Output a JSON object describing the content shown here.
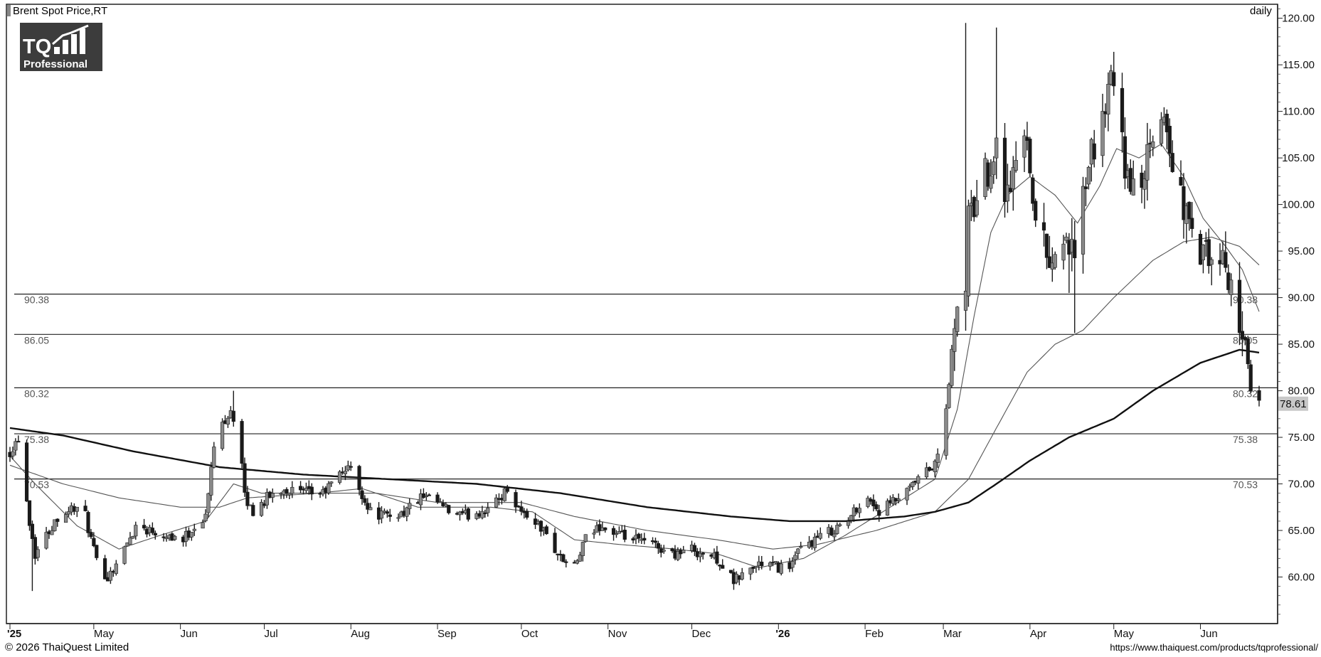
{
  "header": {
    "title": "Brent Spot Price,RT",
    "timeframe": "daily"
  },
  "logo": {
    "line1": "TQ",
    "line2": "Professional"
  },
  "footer": {
    "copyright": "© 2026 ThaiQuest Limited",
    "url": "https://www.thaiquest.com/products/tqprofessional/"
  },
  "chart_data": {
    "type": "candlestick",
    "title": "Brent Spot Price,RT",
    "interval": "daily",
    "y_range": [
      55,
      121.5
    ],
    "y_ticks": [
      60,
      65,
      70,
      75,
      80,
      85,
      90,
      95,
      100,
      105,
      110,
      115,
      120
    ],
    "y_tick_labels": [
      "60.00",
      "65.00",
      "70.00",
      "75.00",
      "80.00",
      "85.00",
      "90.00",
      "95.00",
      "100.00",
      "105.00",
      "110.00",
      "115.00",
      "120.00"
    ],
    "x_range": [
      "2025-04-01",
      "2026-06-22"
    ],
    "x_ticks": [
      {
        "date": "2025-04-01",
        "label": "'25"
      },
      {
        "date": "2025-05-01",
        "label": "May"
      },
      {
        "date": "2025-06-01",
        "label": "Jun"
      },
      {
        "date": "2025-07-01",
        "label": "Jul"
      },
      {
        "date": "2025-08-01",
        "label": "Aug"
      },
      {
        "date": "2025-09-01",
        "label": "Sep"
      },
      {
        "date": "2025-10-01",
        "label": "Oct"
      },
      {
        "date": "2025-11-01",
        "label": "Nov"
      },
      {
        "date": "2025-12-01",
        "label": "Dec"
      },
      {
        "date": "2026-01-01",
        "label": "'26"
      },
      {
        "date": "2026-02-01",
        "label": "Feb"
      },
      {
        "date": "2026-03-01",
        "label": "Mar"
      },
      {
        "date": "2026-04-01",
        "label": "Apr"
      },
      {
        "date": "2026-05-01",
        "label": "May"
      },
      {
        "date": "2026-06-01",
        "label": "Jun"
      }
    ],
    "horizontal_levels": [
      {
        "value": 90.38,
        "label": "90.38"
      },
      {
        "value": 86.05,
        "label": "86.05"
      },
      {
        "value": 80.32,
        "label": "80.32"
      },
      {
        "value": 75.38,
        "label": "75.38"
      },
      {
        "value": 70.53,
        "label": "70.53"
      }
    ],
    "last_price": {
      "value": 78.61,
      "label": "78.61"
    },
    "close_anchors": [
      [
        "2025-04-01",
        73.5
      ],
      [
        "2025-04-04",
        75.0
      ],
      [
        "2025-04-08",
        66.0
      ],
      [
        "2025-04-10",
        62.5
      ],
      [
        "2025-04-14",
        64.5
      ],
      [
        "2025-04-18",
        66.5
      ],
      [
        "2025-04-24",
        67.5
      ],
      [
        "2025-04-28",
        66.5
      ],
      [
        "2025-05-02",
        61.5
      ],
      [
        "2025-05-06",
        60.0
      ],
      [
        "2025-05-12",
        63.0
      ],
      [
        "2025-05-16",
        65.5
      ],
      [
        "2025-05-22",
        65.0
      ],
      [
        "2025-05-28",
        64.5
      ],
      [
        "2025-06-02",
        64.0
      ],
      [
        "2025-06-06",
        65.5
      ],
      [
        "2025-06-10",
        66.5
      ],
      [
        "2025-06-13",
        74.0
      ],
      [
        "2025-06-16",
        76.5
      ],
      [
        "2025-06-19",
        78.0
      ],
      [
        "2025-06-20",
        77.0
      ],
      [
        "2025-06-23",
        72.0
      ],
      [
        "2025-06-24",
        68.5
      ],
      [
        "2025-06-27",
        67.0
      ],
      [
        "2025-07-02",
        68.5
      ],
      [
        "2025-07-08",
        69.5
      ],
      [
        "2025-07-15",
        69.0
      ],
      [
        "2025-07-22",
        69.0
      ],
      [
        "2025-07-28",
        71.0
      ],
      [
        "2025-07-31",
        72.0
      ],
      [
        "2025-08-04",
        69.5
      ],
      [
        "2025-08-08",
        67.0
      ],
      [
        "2025-08-14",
        66.5
      ],
      [
        "2025-08-20",
        67.0
      ],
      [
        "2025-08-26",
        68.5
      ],
      [
        "2025-09-01",
        68.0
      ],
      [
        "2025-09-05",
        67.0
      ],
      [
        "2025-09-10",
        66.5
      ],
      [
        "2025-09-16",
        67.0
      ],
      [
        "2025-09-22",
        68.0
      ],
      [
        "2025-09-26",
        69.5
      ],
      [
        "2025-10-01",
        67.0
      ],
      [
        "2025-10-06",
        66.0
      ],
      [
        "2025-10-10",
        64.5
      ],
      [
        "2025-10-15",
        62.0
      ],
      [
        "2025-10-20",
        61.0
      ],
      [
        "2025-10-24",
        64.0
      ],
      [
        "2025-10-29",
        65.5
      ],
      [
        "2025-11-04",
        64.5
      ],
      [
        "2025-11-10",
        64.0
      ],
      [
        "2025-11-17",
        63.5
      ],
      [
        "2025-11-24",
        62.5
      ],
      [
        "2025-12-01",
        63.0
      ],
      [
        "2025-12-05",
        62.5
      ],
      [
        "2025-12-10",
        62.0
      ],
      [
        "2025-12-16",
        59.5
      ],
      [
        "2025-12-20",
        60.5
      ],
      [
        "2025-12-26",
        61.5
      ],
      [
        "2026-01-02",
        61.0
      ],
      [
        "2026-01-06",
        61.5
      ],
      [
        "2026-01-09",
        63.0
      ],
      [
        "2026-01-14",
        64.0
      ],
      [
        "2026-01-20",
        65.0
      ],
      [
        "2026-01-26",
        66.0
      ],
      [
        "2026-01-29",
        67.5
      ],
      [
        "2026-02-02",
        68.5
      ],
      [
        "2026-02-06",
        67.0
      ],
      [
        "2026-02-11",
        68.0
      ],
      [
        "2026-02-16",
        69.0
      ],
      [
        "2026-02-20",
        70.5
      ],
      [
        "2026-02-26",
        72.0
      ],
      [
        "2026-02-27",
        73.0
      ],
      [
        "2026-03-02",
        78.0
      ],
      [
        "2026-03-04",
        84.0
      ],
      [
        "2026-03-06",
        88.0
      ],
      [
        "2026-03-09",
        92.0
      ],
      [
        "2026-03-10",
        98.0
      ],
      [
        "2026-03-13",
        101.0
      ],
      [
        "2026-03-17",
        104.0
      ],
      [
        "2026-03-20",
        106.5
      ],
      [
        "2026-03-24",
        101.0
      ],
      [
        "2026-03-27",
        104.5
      ],
      [
        "2026-03-31",
        108.0
      ],
      [
        "2026-04-03",
        98.0
      ],
      [
        "2026-04-07",
        95.0
      ],
      [
        "2026-04-10",
        94.0
      ],
      [
        "2026-04-14",
        97.0
      ],
      [
        "2026-04-17",
        93.0
      ],
      [
        "2026-04-21",
        103.0
      ],
      [
        "2026-04-24",
        106.0
      ],
      [
        "2026-04-28",
        111.0
      ],
      [
        "2026-05-01",
        113.0
      ],
      [
        "2026-05-05",
        104.0
      ],
      [
        "2026-05-08",
        101.0
      ],
      [
        "2026-05-12",
        104.0
      ],
      [
        "2026-05-15",
        106.0
      ],
      [
        "2026-05-19",
        110.0
      ],
      [
        "2026-05-22",
        104.0
      ],
      [
        "2026-05-26",
        100.0
      ],
      [
        "2026-05-29",
        96.0
      ],
      [
        "2026-06-02",
        94.5
      ],
      [
        "2026-06-05",
        93.5
      ],
      [
        "2026-06-08",
        94.0
      ],
      [
        "2026-06-11",
        92.0
      ],
      [
        "2026-06-15",
        88.0
      ],
      [
        "2026-06-17",
        85.0
      ],
      [
        "2026-06-18",
        82.5
      ],
      [
        "2026-06-19",
        79.5
      ],
      [
        "2026-06-22",
        78.61
      ]
    ],
    "spikes": [
      {
        "date": "2026-03-09",
        "high": 119.5
      },
      {
        "date": "2026-03-20",
        "high": 119.0
      },
      {
        "date": "2026-04-30",
        "high": 115.0
      },
      {
        "date": "2025-04-09",
        "low": 58.5
      },
      {
        "date": "2025-06-20",
        "high": 80.0
      },
      {
        "date": "2026-04-15",
        "low": 90.5
      },
      {
        "date": "2026-04-17",
        "low": 86.2
      }
    ],
    "moving_averages": [
      {
        "kind": "short",
        "color": "#555555",
        "width": 1.1,
        "points": [
          [
            "2025-04-01",
            73.0
          ],
          [
            "2025-04-10",
            70.0
          ],
          [
            "2025-04-25",
            65.5
          ],
          [
            "2025-05-10",
            63.0
          ],
          [
            "2025-05-25",
            64.5
          ],
          [
            "2025-06-10",
            66.0
          ],
          [
            "2025-06-20",
            70.0
          ],
          [
            "2025-06-30",
            69.0
          ],
          [
            "2025-07-20",
            69.0
          ],
          [
            "2025-08-05",
            69.5
          ],
          [
            "2025-08-25",
            67.5
          ],
          [
            "2025-09-20",
            67.5
          ],
          [
            "2025-10-05",
            67.0
          ],
          [
            "2025-10-20",
            64.0
          ],
          [
            "2025-11-05",
            63.5
          ],
          [
            "2025-11-25",
            63.0
          ],
          [
            "2025-12-10",
            62.5
          ],
          [
            "2025-12-25",
            61.0
          ],
          [
            "2026-01-10",
            62.0
          ],
          [
            "2026-01-25",
            64.5
          ],
          [
            "2026-02-10",
            67.5
          ],
          [
            "2026-02-26",
            70.5
          ],
          [
            "2026-03-06",
            78.0
          ],
          [
            "2026-03-12",
            88.0
          ],
          [
            "2026-03-18",
            97.0
          ],
          [
            "2026-03-24",
            101.0
          ],
          [
            "2026-04-01",
            103.0
          ],
          [
            "2026-04-10",
            101.0
          ],
          [
            "2026-04-18",
            98.0
          ],
          [
            "2026-04-26",
            102.0
          ],
          [
            "2026-05-02",
            106.0
          ],
          [
            "2026-05-10",
            105.0
          ],
          [
            "2026-05-18",
            106.5
          ],
          [
            "2026-05-26",
            103.0
          ],
          [
            "2026-06-02",
            98.5
          ],
          [
            "2026-06-10",
            95.5
          ],
          [
            "2026-06-16",
            93.0
          ],
          [
            "2026-06-22",
            88.5
          ]
        ]
      },
      {
        "kind": "medium",
        "color": "#555555",
        "width": 1.1,
        "points": [
          [
            "2025-04-01",
            72.0
          ],
          [
            "2025-04-20",
            70.0
          ],
          [
            "2025-05-10",
            68.5
          ],
          [
            "2025-06-01",
            67.5
          ],
          [
            "2025-06-15",
            67.5
          ],
          [
            "2025-06-25",
            68.5
          ],
          [
            "2025-07-20",
            69.0
          ],
          [
            "2025-08-10",
            69.0
          ],
          [
            "2025-09-01",
            68.0
          ],
          [
            "2025-10-01",
            68.0
          ],
          [
            "2025-10-20",
            66.5
          ],
          [
            "2025-11-15",
            65.0
          ],
          [
            "2025-12-10",
            64.0
          ],
          [
            "2025-12-30",
            63.0
          ],
          [
            "2026-01-15",
            63.5
          ],
          [
            "2026-02-05",
            65.0
          ],
          [
            "2026-02-26",
            67.0
          ],
          [
            "2026-03-10",
            70.5
          ],
          [
            "2026-03-20",
            76.0
          ],
          [
            "2026-03-31",
            82.0
          ],
          [
            "2026-04-10",
            85.0
          ],
          [
            "2026-04-20",
            86.5
          ],
          [
            "2026-05-01",
            90.0
          ],
          [
            "2026-05-15",
            94.0
          ],
          [
            "2026-05-26",
            96.0
          ],
          [
            "2026-06-05",
            96.5
          ],
          [
            "2026-06-15",
            95.5
          ],
          [
            "2026-06-22",
            93.5
          ]
        ]
      },
      {
        "kind": "long",
        "color": "#111111",
        "width": 2.4,
        "points": [
          [
            "2025-04-01",
            76.0
          ],
          [
            "2025-04-20",
            75.2
          ],
          [
            "2025-05-15",
            73.5
          ],
          [
            "2025-06-15",
            71.8
          ],
          [
            "2025-07-15",
            71.0
          ],
          [
            "2025-08-15",
            70.5
          ],
          [
            "2025-09-15",
            70.0
          ],
          [
            "2025-10-15",
            69.0
          ],
          [
            "2025-11-15",
            67.5
          ],
          [
            "2025-12-15",
            66.5
          ],
          [
            "2026-01-05",
            66.0
          ],
          [
            "2026-01-25",
            66.0
          ],
          [
            "2026-02-15",
            66.5
          ],
          [
            "2026-02-26",
            67.0
          ],
          [
            "2026-03-10",
            68.0
          ],
          [
            "2026-03-20",
            70.0
          ],
          [
            "2026-04-01",
            72.5
          ],
          [
            "2026-04-15",
            75.0
          ],
          [
            "2026-05-01",
            77.0
          ],
          [
            "2026-05-15",
            80.0
          ],
          [
            "2026-06-01",
            83.0
          ],
          [
            "2026-06-15",
            84.4
          ],
          [
            "2026-06-22",
            84.1
          ]
        ]
      }
    ]
  }
}
